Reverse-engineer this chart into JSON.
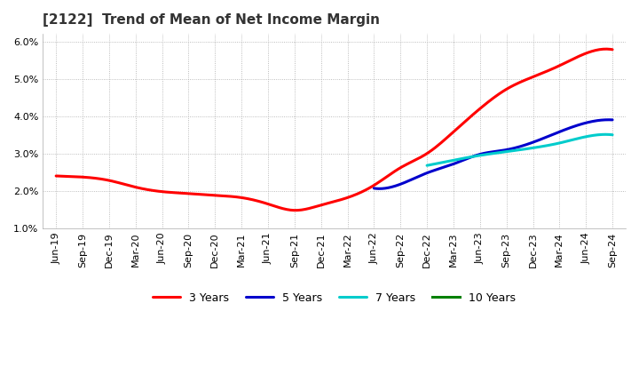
{
  "title": "[2122]  Trend of Mean of Net Income Margin",
  "ylim": [
    0.01,
    0.062
  ],
  "yticks": [
    0.01,
    0.02,
    0.03,
    0.04,
    0.05,
    0.06
  ],
  "x_labels": [
    "Jun-19",
    "Sep-19",
    "Dec-19",
    "Mar-20",
    "Jun-20",
    "Sep-20",
    "Dec-20",
    "Mar-21",
    "Jun-21",
    "Sep-21",
    "Dec-21",
    "Mar-22",
    "Jun-22",
    "Sep-22",
    "Dec-22",
    "Mar-23",
    "Jun-23",
    "Sep-23",
    "Dec-23",
    "Mar-24",
    "Jun-24",
    "Sep-24"
  ],
  "series": {
    "3 Years": {
      "color": "#FF0000",
      "values": [
        0.024,
        0.0237,
        0.0228,
        0.021,
        0.0198,
        0.0193,
        0.0188,
        0.0182,
        0.0165,
        0.0148,
        0.0162,
        0.0182,
        0.0215,
        0.0262,
        0.03,
        0.0358,
        0.042,
        0.0472,
        0.0505,
        0.0535,
        0.0568,
        0.0578
      ]
    },
    "5 Years": {
      "color": "#0000CC",
      "values": [
        null,
        null,
        null,
        null,
        null,
        null,
        null,
        null,
        null,
        null,
        null,
        null,
        0.0207,
        0.0218,
        0.0248,
        0.0272,
        0.0298,
        0.031,
        0.033,
        0.0358,
        0.0382,
        0.039
      ]
    },
    "7 Years": {
      "color": "#00CCCC",
      "values": [
        null,
        null,
        null,
        null,
        null,
        null,
        null,
        null,
        null,
        null,
        null,
        null,
        null,
        null,
        0.0268,
        0.0282,
        0.0295,
        0.0305,
        0.0315,
        0.0328,
        0.0345,
        0.035
      ]
    },
    "10 Years": {
      "color": "#008000",
      "values": [
        null,
        null,
        null,
        null,
        null,
        null,
        null,
        null,
        null,
        null,
        null,
        null,
        null,
        null,
        null,
        null,
        null,
        null,
        null,
        null,
        null,
        null
      ]
    }
  },
  "legend_order": [
    "3 Years",
    "5 Years",
    "7 Years",
    "10 Years"
  ],
  "background_color": "#FFFFFF",
  "grid_color": "#AAAAAA",
  "line_width": 2.2
}
